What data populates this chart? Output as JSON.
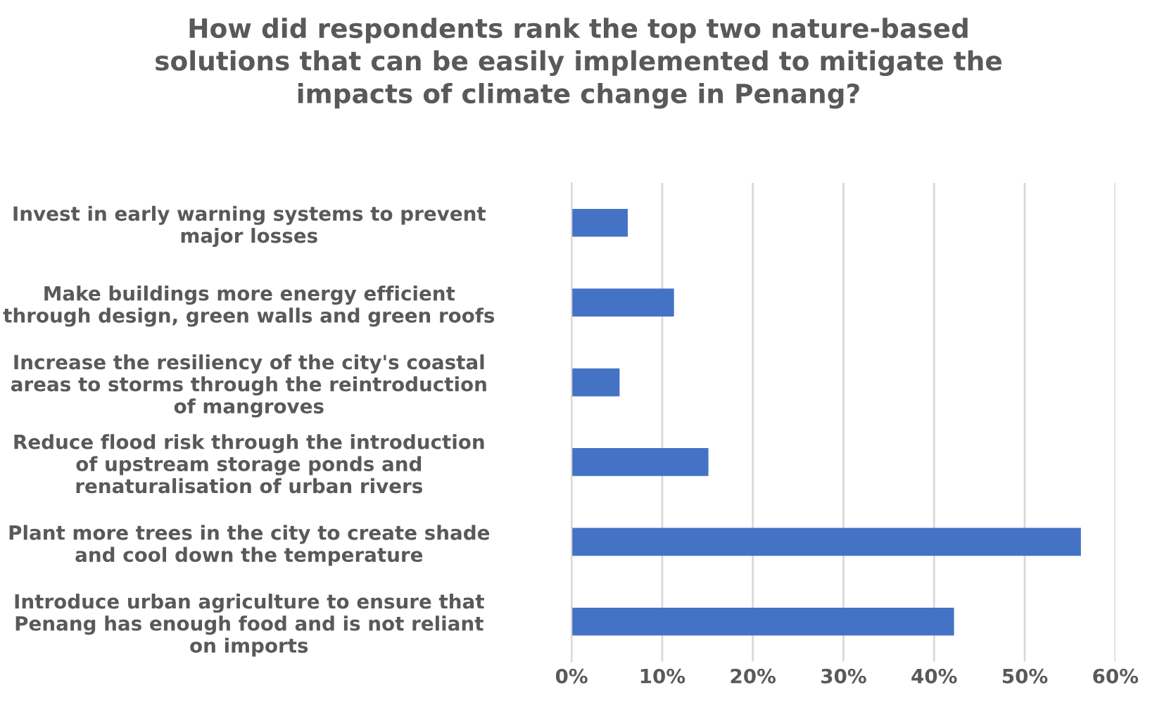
{
  "chart_data": {
    "type": "bar",
    "orientation": "horizontal",
    "title": "How did respondents rank the top two nature-based\nsolutions that can be easily implemented to mitigate the\nimpacts of climate change in Penang?",
    "categories": [
      "Invest in early warning systems to prevent\nmajor losses",
      "Make buildings more energy efficient\nthrough design, green walls and green roofs",
      "Increase the resiliency of the city's coastal\nareas to storms through the reintroduction\nof mangroves",
      "Reduce flood risk through the introduction\nof upstream storage ponds and\nrenaturalisation of urban rivers",
      "Plant more trees in the city to create shade\nand cool down the temperature",
      "Introduce urban agriculture to ensure that\nPenang has enough food and is not reliant\non imports"
    ],
    "values": [
      6.2,
      11.3,
      5.3,
      15.1,
      56.2,
      42.2
    ],
    "color": "#4472c4",
    "xlim": [
      0,
      60
    ],
    "xticks": [
      {
        "value": 0,
        "label": "0%"
      },
      {
        "value": 10,
        "label": "10%"
      },
      {
        "value": 20,
        "label": "20%"
      },
      {
        "value": 30,
        "label": "30%"
      },
      {
        "value": 40,
        "label": "40%"
      },
      {
        "value": 50,
        "label": "50%"
      },
      {
        "value": 60,
        "label": "60%"
      }
    ],
    "grid": "x"
  }
}
